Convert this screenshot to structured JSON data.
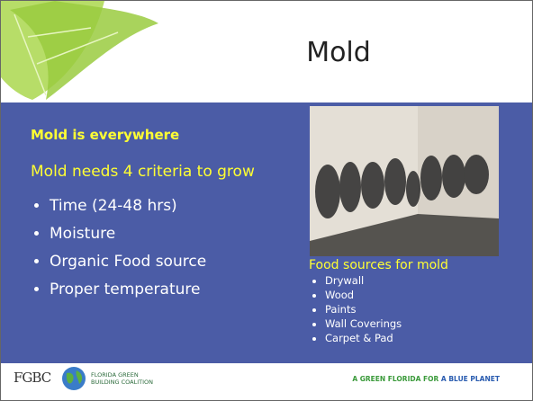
{
  "title": "Mold",
  "left": {
    "heading": "Mold is everywhere",
    "subheading": "Mold needs 4 criteria to grow",
    "bullets": [
      "Time (24-48 hrs)",
      "Moisture",
      "Organic Food source",
      "Proper temperature"
    ]
  },
  "right": {
    "caption": "Food sources for mold",
    "bullets": [
      "Drywall",
      "Wood",
      "Paints",
      "Wall Coverings",
      "Carpet & Pad"
    ]
  },
  "footer": {
    "logo": "FGBC",
    "logo_sub": [
      "FLORIDA GREEN",
      "BUILDING COALITION"
    ],
    "tagline_green": "A GREEN FLORIDA FOR",
    "tagline_blue": "A BLUE PLANET"
  }
}
